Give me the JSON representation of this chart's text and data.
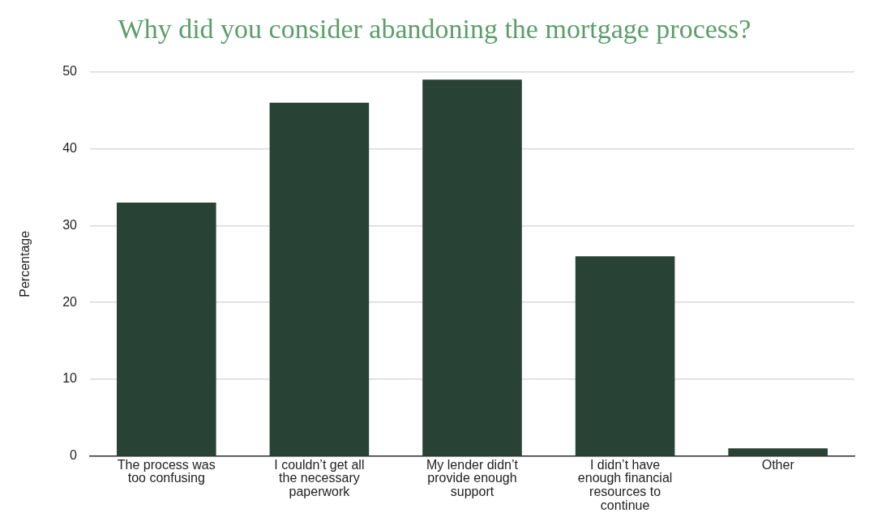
{
  "chart_data": {
    "type": "bar",
    "title": "Why did you consider abandoning the mortgage process?",
    "ylabel": "Percentage",
    "categories": [
      "The process was too confusing",
      "I couldn’t get all the necessary paperwork",
      "My lender didn’t provide enough support",
      "I didn’t have enough financial resources to continue",
      "Other"
    ],
    "values": [
      33,
      46,
      49,
      26,
      1
    ],
    "color": "#284235",
    "ylim": [
      0,
      50
    ],
    "yticks": [
      0,
      10,
      20,
      30,
      40,
      50
    ],
    "grid": "y",
    "legend": false
  }
}
